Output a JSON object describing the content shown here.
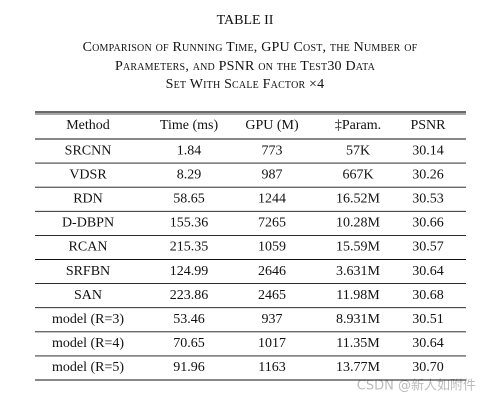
{
  "table_title": "TABLE II",
  "caption_lines": [
    "Comparison of Running Time, GPU Cost, the Number of",
    "Parameters, and PSNR on the Test30 Data",
    "Set With Scale Factor ×4"
  ],
  "table": {
    "header": [
      "Method",
      "Time (ms)",
      "GPU (M)",
      "‡Param.",
      "PSNR"
    ],
    "rows": [
      [
        "SRCNN",
        "1.84",
        "773",
        "57K",
        "30.14"
      ],
      [
        "VDSR",
        "8.29",
        "987",
        "667K",
        "30.26"
      ],
      [
        "RDN",
        "58.65",
        "1244",
        "16.52M",
        "30.53"
      ],
      [
        "D-DBPN",
        "155.36",
        "7265",
        "10.28M",
        "30.66"
      ],
      [
        "RCAN",
        "215.35",
        "1059",
        "15.59M",
        "30.57"
      ],
      [
        "SRFBN",
        "124.99",
        "2646",
        "3.631M",
        "30.64"
      ],
      [
        "SAN",
        "223.86",
        "2465",
        "11.98M",
        "30.68"
      ],
      [
        "model (R=3)",
        "53.46",
        "937",
        "8.931M",
        "30.51"
      ],
      [
        "model (R=4)",
        "70.65",
        "1017",
        "11.35M",
        "30.64"
      ],
      [
        "model (R=5)",
        "91.96",
        "1163",
        "13.77M",
        "30.70"
      ]
    ]
  },
  "watermark": "CSDN @新人如附件"
}
